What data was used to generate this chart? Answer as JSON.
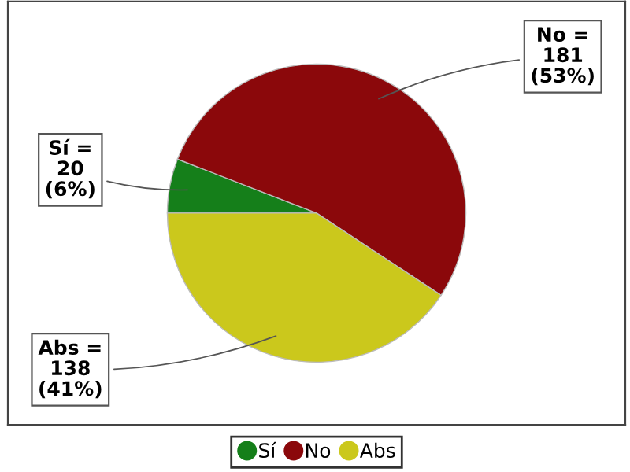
{
  "chart_data": {
    "type": "pie",
    "categories": [
      "Sí",
      "No",
      "Abs"
    ],
    "values": [
      20,
      181,
      138
    ],
    "colors": [
      "#157f1a",
      "#8b080b",
      "#cbc81c"
    ],
    "value_labels": [
      "Sí =\n20\n(6%)",
      "No =\n181\n(53%)",
      "Abs =\n138\n(41%)"
    ],
    "legend": "bottom"
  }
}
